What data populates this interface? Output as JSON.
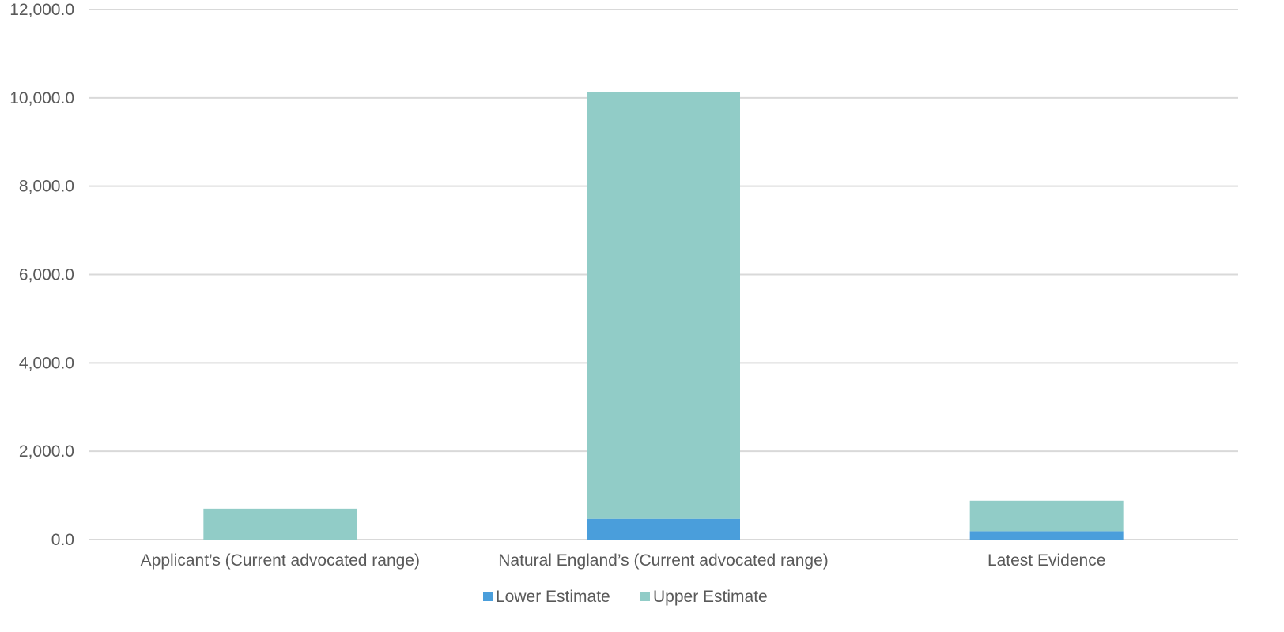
{
  "chart_data": {
    "type": "bar",
    "stacked": true,
    "categories": [
      "Applicant’s (Current advocated range)",
      "Natural England’s (Current advocated range)",
      "Latest Evidence"
    ],
    "series": [
      {
        "name": "Lower Estimate",
        "color": "#4a9edb",
        "values": [
          0,
          470,
          190
        ]
      },
      {
        "name": "Upper Estimate",
        "color": "#91ccc7",
        "values": [
          700,
          9670,
          690
        ]
      }
    ],
    "ylim": [
      0,
      12000
    ],
    "yticks": [
      "0.0",
      "2,000.0",
      "4,000.0",
      "6,000.0",
      "8,000.0",
      "10,000.0",
      "12,000.0"
    ],
    "ytick_values": [
      0,
      2000,
      4000,
      6000,
      8000,
      10000,
      12000
    ],
    "grid": true,
    "legend_position": "bottom",
    "title": "",
    "xlabel": "",
    "ylabel": ""
  }
}
